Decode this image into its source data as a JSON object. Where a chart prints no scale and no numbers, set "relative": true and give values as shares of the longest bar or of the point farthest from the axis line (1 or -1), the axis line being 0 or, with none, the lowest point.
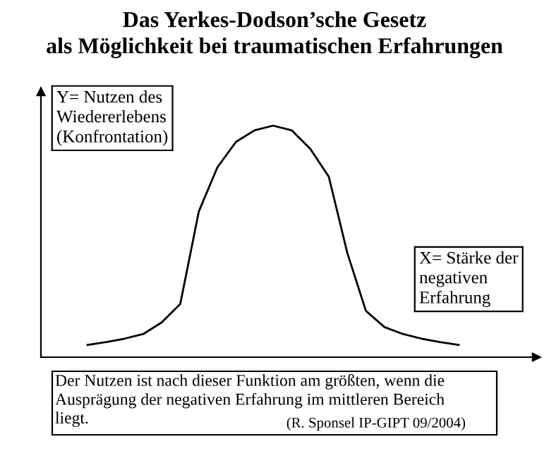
{
  "chart_data": {
    "type": "line",
    "title": "Das Yerkes-Dodson’sche Gesetz\nals Möglichkeit bei traumatischen Erfahrungen",
    "ylabel": "Y= Nutzen des\nWiedererlebens\n(Konfrontation)",
    "xlabel": "X= Stärke der\nnegativen\nErfahrung",
    "annotations": [
      "Der Nutzen ist nach dieser Funktion am größten, wenn die\nAusprägung der negativen Erfahrung im mittleren Bereich\nliegt.",
      "(R. Sponsel IP-GIPT 09/2004)"
    ],
    "relative": true,
    "categories": [
      null,
      null,
      null,
      null,
      null,
      null,
      null,
      null,
      null,
      null,
      null,
      null,
      null,
      null,
      null,
      null,
      null,
      null,
      null,
      null,
      null
    ],
    "series": [
      {
        "color": "#000000",
        "values": [
          0.053,
          0.065,
          0.08,
          0.1,
          0.15,
          0.23,
          0.63,
          0.82,
          0.93,
          0.98,
          1.0,
          0.98,
          0.9,
          0.78,
          0.45,
          0.2,
          0.13,
          0.1,
          0.08,
          0.065,
          0.053
        ]
      }
    ],
    "marker": "none",
    "line_style": "solid"
  }
}
